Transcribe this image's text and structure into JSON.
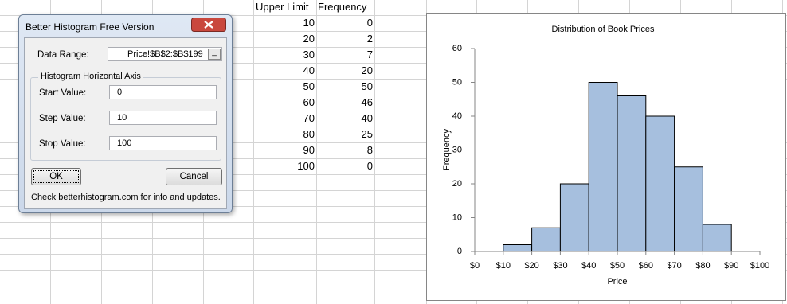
{
  "dialog": {
    "title": "Better Histogram Free Version",
    "data_range_label": "Data Range:",
    "data_range_value": "Price!$B$2:$B$199",
    "group_title": "Histogram Horizontal Axis",
    "start_label": "Start Value:",
    "start_value": "0",
    "step_label": "Step Value:",
    "step_value": "10",
    "stop_label": "Stop Value:",
    "stop_value": "100",
    "ok": "OK",
    "cancel": "Cancel",
    "footer": "Check betterhistogram.com for info and updates."
  },
  "table": {
    "columns": [
      "Upper Limit",
      "Frequency"
    ],
    "rows": [
      [
        10,
        0
      ],
      [
        20,
        2
      ],
      [
        30,
        7
      ],
      [
        40,
        20
      ],
      [
        50,
        50
      ],
      [
        60,
        46
      ],
      [
        70,
        40
      ],
      [
        80,
        25
      ],
      [
        90,
        8
      ],
      [
        100,
        0
      ]
    ]
  },
  "chart_data": {
    "type": "histogram",
    "title": "Distribution of Book Prices",
    "xlabel": "Price",
    "ylabel": "Frequency",
    "bins": [
      0,
      10,
      20,
      30,
      40,
      50,
      60,
      70,
      80,
      90,
      100
    ],
    "values": [
      0,
      2,
      7,
      20,
      50,
      46,
      40,
      25,
      8,
      0
    ],
    "color": "#a6bfde",
    "xlim": [
      0,
      100
    ],
    "xticks": [
      {
        "value": 0,
        "label": "$0"
      },
      {
        "value": 10,
        "label": "$10"
      },
      {
        "value": 20,
        "label": "$20"
      },
      {
        "value": 30,
        "label": "$30"
      },
      {
        "value": 40,
        "label": "$40"
      },
      {
        "value": 50,
        "label": "$50"
      },
      {
        "value": 60,
        "label": "$60"
      },
      {
        "value": 70,
        "label": "$70"
      },
      {
        "value": 80,
        "label": "$80"
      },
      {
        "value": 90,
        "label": "$90"
      },
      {
        "value": 100,
        "label": "$100"
      }
    ],
    "ylim": [
      0,
      60
    ],
    "yticks": [
      0,
      10,
      20,
      30,
      40,
      50,
      60
    ],
    "grid": false
  }
}
